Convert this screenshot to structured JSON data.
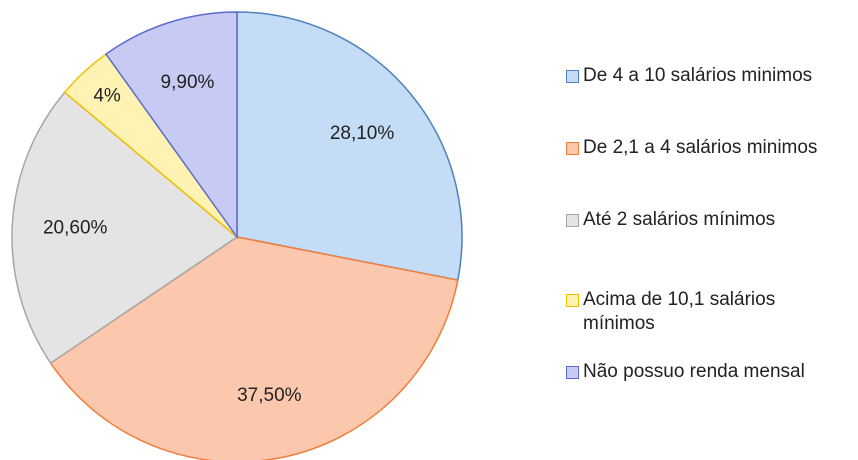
{
  "chart_data": {
    "type": "pie",
    "categories": [
      "De 4 a 10 salários minimos",
      "De 2,1 a 4 salários minimos",
      "Até 2 salários mínimos",
      "Acima de 10,1 salários mínimos",
      "Não possuo renda mensal"
    ],
    "values": [
      28.1,
      37.5,
      20.6,
      4,
      9.9
    ],
    "value_labels": [
      "28,10%",
      "37,50%",
      "20,60%",
      "4%",
      "9,90%"
    ],
    "colors": [
      "#c4dcf5",
      "#fcc8ad",
      "#e4e4e4",
      "#fff3b3",
      "#c7cbf3"
    ],
    "edge_colors": [
      "#4f81bd",
      "#f07d3a",
      "#a6a6a6",
      "#f0c000",
      "#5b6cd0"
    ],
    "legend": "right"
  }
}
